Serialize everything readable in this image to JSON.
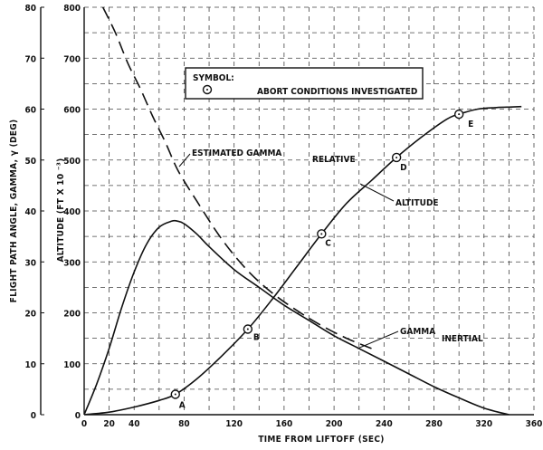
{
  "chart_data": {
    "type": "line",
    "title": "",
    "xlabel": "TIME FROM LIFTOFF (SEC)",
    "ylabel_left": "FLIGHT PATH ANGLE, GAMMA, γ (DEG)",
    "ylabel_right": "ALTITUDE (FT X 10 ⁻³)",
    "xlim": [
      0,
      360
    ],
    "ylim_left": [
      0,
      80
    ],
    "ylim_right": [
      0,
      800
    ],
    "grid": true,
    "x_ticks": [
      {
        "value": 0,
        "label": "0"
      },
      {
        "value": 20,
        "label": "20"
      },
      {
        "value": 40,
        "label": "40"
      },
      {
        "value": 80,
        "label": "80"
      },
      {
        "value": 120,
        "label": "120"
      },
      {
        "value": 160,
        "label": "160"
      },
      {
        "value": 200,
        "label": "200"
      },
      {
        "value": 240,
        "label": "240"
      },
      {
        "value": 280,
        "label": "280"
      },
      {
        "value": 320,
        "label": "320"
      },
      {
        "value": 360,
        "label": "360"
      }
    ],
    "y_left_ticks": [
      {
        "value": 0,
        "label": "0"
      },
      {
        "value": 10,
        "label": "10"
      },
      {
        "value": 20,
        "label": "20"
      },
      {
        "value": 30,
        "label": "30"
      },
      {
        "value": 40,
        "label": "40"
      },
      {
        "value": 50,
        "label": "50"
      },
      {
        "value": 60,
        "label": "60"
      },
      {
        "value": 70,
        "label": "70"
      },
      {
        "value": 80,
        "label": "80"
      }
    ],
    "y_right_ticks": [
      {
        "value": 0,
        "label": "0"
      },
      {
        "value": 100,
        "label": "100"
      },
      {
        "value": 200,
        "label": "200"
      },
      {
        "value": 300,
        "label": "300"
      },
      {
        "value": 400,
        "label": "400"
      },
      {
        "value": 500,
        "label": "500"
      },
      {
        "value": 600,
        "label": "600"
      },
      {
        "value": 700,
        "label": "700"
      },
      {
        "value": 800,
        "label": "800"
      }
    ],
    "series": [
      {
        "name": "ALTITUDE",
        "axis": "right",
        "style": "solid",
        "x": [
          0,
          20,
          40,
          60,
          73,
          90,
          110,
          131,
          150,
          170,
          190,
          210,
          230,
          250,
          270,
          290,
          300,
          315,
          330,
          340,
          350
        ],
        "y": [
          0,
          5,
          15,
          28,
          40,
          70,
          115,
          168,
          225,
          290,
          355,
          415,
          460,
          505,
          545,
          580,
          590,
          600,
          603,
          604,
          605
        ]
      },
      {
        "name": "GAMMA INERTIAL",
        "axis": "left",
        "style": "solid",
        "x": [
          0,
          10,
          20,
          30,
          40,
          50,
          60,
          70,
          75,
          80,
          90,
          100,
          120,
          140,
          160,
          180,
          200,
          220,
          240,
          260,
          280,
          300,
          320,
          340
        ],
        "y": [
          0,
          6,
          13,
          21,
          28,
          33.5,
          36.8,
          38,
          38,
          37.5,
          35.5,
          33,
          28.5,
          25,
          21.5,
          18.5,
          15.5,
          13,
          10.5,
          8,
          5.5,
          3.3,
          1.3,
          0
        ]
      },
      {
        "name": "ESTIMATED GAMMA RELATIVE",
        "axis": "left",
        "style": "dashed",
        "x": [
          15,
          25,
          35,
          45,
          55,
          65,
          75,
          90,
          110,
          130,
          150,
          170,
          190,
          210,
          230
        ],
        "y": [
          80,
          75,
          69,
          64,
          58.5,
          53.5,
          48,
          42,
          34.5,
          28.5,
          24,
          20.5,
          17.5,
          15,
          13
        ]
      }
    ],
    "abort_points": [
      {
        "label": "A",
        "x": 73,
        "altitude": 40
      },
      {
        "label": "B",
        "x": 131,
        "altitude": 168
      },
      {
        "label": "C",
        "x": 190,
        "altitude": 355
      },
      {
        "label": "D",
        "x": 250,
        "altitude": 505
      },
      {
        "label": "E",
        "x": 300,
        "altitude": 590
      }
    ],
    "legend": {
      "placement": "top-center",
      "title": "SYMBOL:",
      "entry": "ABORT CONDITIONS INVESTIGATED"
    },
    "annotations": {
      "estimated_gamma": "ESTIMATED GAMMA",
      "relative": "RELATIVE",
      "altitude": "ALTITUDE",
      "gamma": "GAMMA",
      "inertial": "INERTIAL"
    }
  }
}
